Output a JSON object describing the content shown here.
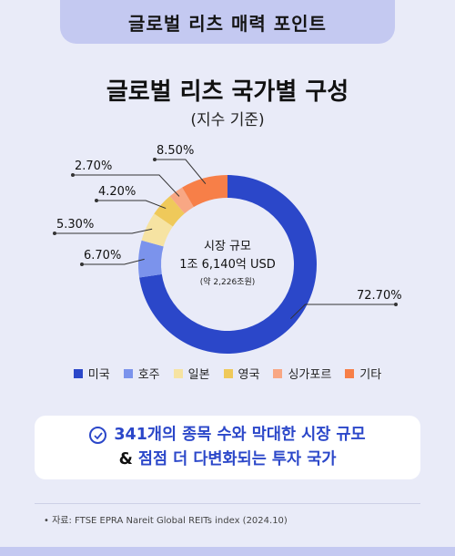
{
  "header": {
    "label": "글로벌 리츠 매력 포인트"
  },
  "chart_data": {
    "type": "pie",
    "title": "글로벌 리츠 국가별 구성",
    "subtitle": "(지수 기준)",
    "center_label": "시장 규모",
    "center_value": "1조 6,140억 USD",
    "center_note": "(약 2,226조원)",
    "categories": [
      "미국",
      "호주",
      "일본",
      "영국",
      "싱가포르",
      "기타"
    ],
    "values": [
      72.7,
      6.7,
      5.3,
      4.2,
      2.7,
      8.5
    ],
    "value_labels": [
      "72.70%",
      "6.70%",
      "5.30%",
      "4.20%",
      "2.70%",
      "8.50%"
    ],
    "colors": [
      "#2b47c9",
      "#7b93ec",
      "#f6e3a2",
      "#efc95a",
      "#f8a784",
      "#f77f48"
    ],
    "legend_position": "bottom"
  },
  "callout": {
    "line1": "341개의 종목 수와 막대한 시장 규모",
    "amp": "&",
    "line2": "점점 더 다변화되는 투자 국가"
  },
  "source": "• 자료: FTSE EPRA Nareit Global REITs index (2024.10)"
}
